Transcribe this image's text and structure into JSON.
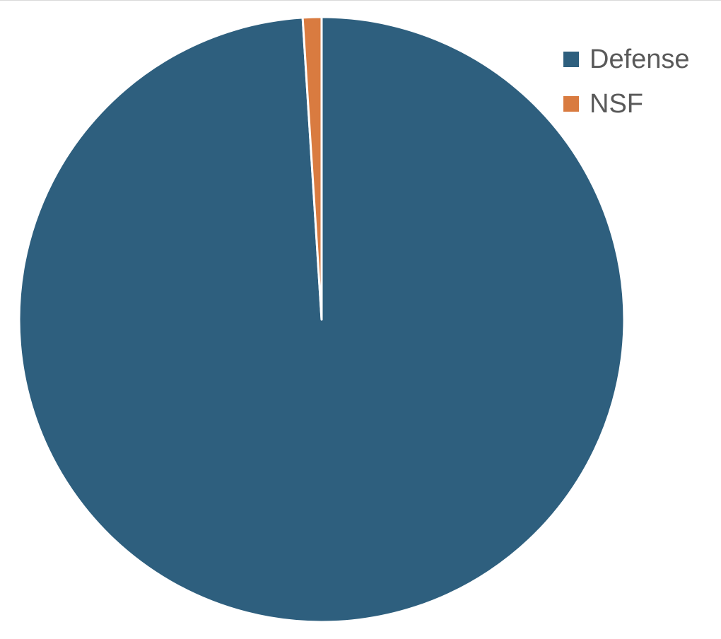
{
  "chart_data": {
    "type": "pie",
    "categories": [
      "Defense",
      "NSF"
    ],
    "values": [
      99,
      1
    ],
    "colors": [
      "#2e5f7e",
      "#d97b40"
    ],
    "legend": "top-right"
  }
}
